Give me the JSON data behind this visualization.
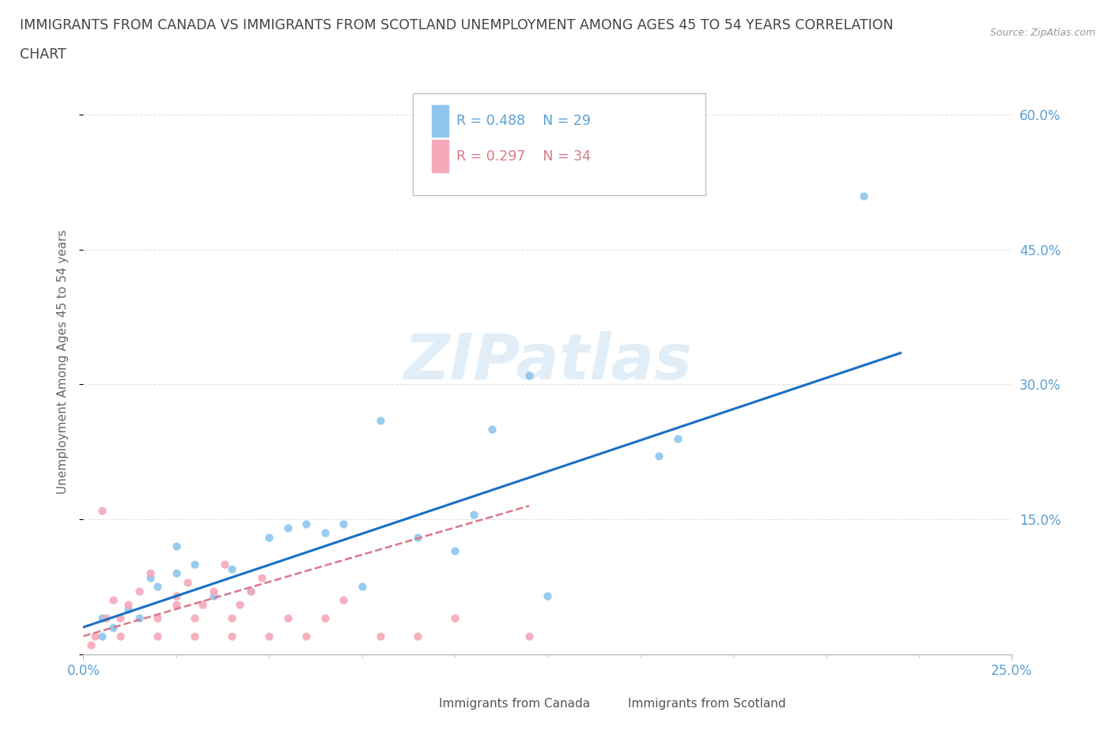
{
  "title_line1": "IMMIGRANTS FROM CANADA VS IMMIGRANTS FROM SCOTLAND UNEMPLOYMENT AMONG AGES 45 TO 54 YEARS CORRELATION",
  "title_line2": "CHART",
  "source_text": "Source: ZipAtlas.com",
  "ylabel": "Unemployment Among Ages 45 to 54 years",
  "xlim": [
    0.0,
    0.25
  ],
  "ylim": [
    0.0,
    0.65
  ],
  "yticks": [
    0.0,
    0.15,
    0.3,
    0.45,
    0.6
  ],
  "ytick_labels": [
    "",
    "15.0%",
    "30.0%",
    "45.0%",
    "60.0%"
  ],
  "xtick_main": [
    0.0,
    0.25
  ],
  "xtick_main_labels": [
    "0.0%",
    "25.0%"
  ],
  "xtick_minor_positions": [
    0.025,
    0.05,
    0.075,
    0.1,
    0.125,
    0.15,
    0.175,
    0.2,
    0.225
  ],
  "watermark": "ZIPatlas",
  "legend_r1": "R = 0.488",
  "legend_n1": "N = 29",
  "legend_r2": "R = 0.297",
  "legend_n2": "N = 34",
  "color_canada": "#8ec6ee",
  "color_scotland": "#f5a8ba",
  "color_line_canada": "#1a6fc4",
  "color_line_scotland": "#d9788a",
  "background_color": "#ffffff",
  "title_color": "#444444",
  "axis_label_color": "#5a9fd4",
  "grid_color": "#e0e0e0",
  "title_fontsize": 12.5,
  "label_fontsize": 11,
  "tick_fontsize": 12,
  "canada_x": [
    0.005,
    0.005,
    0.008,
    0.012,
    0.015,
    0.018,
    0.02,
    0.025,
    0.025,
    0.03,
    0.035,
    0.04,
    0.045,
    0.05,
    0.055,
    0.06,
    0.065,
    0.07,
    0.075,
    0.08,
    0.09,
    0.1,
    0.105,
    0.11,
    0.12,
    0.125,
    0.155,
    0.16,
    0.21
  ],
  "canada_y": [
    0.02,
    0.04,
    0.03,
    0.05,
    0.04,
    0.085,
    0.075,
    0.09,
    0.12,
    0.1,
    0.065,
    0.095,
    0.07,
    0.13,
    0.14,
    0.145,
    0.135,
    0.145,
    0.075,
    0.26,
    0.13,
    0.115,
    0.155,
    0.25,
    0.31,
    0.065,
    0.22,
    0.24,
    0.51
  ],
  "scotland_x": [
    0.002,
    0.003,
    0.005,
    0.006,
    0.008,
    0.01,
    0.01,
    0.012,
    0.015,
    0.018,
    0.02,
    0.02,
    0.025,
    0.025,
    0.028,
    0.03,
    0.03,
    0.032,
    0.035,
    0.038,
    0.04,
    0.04,
    0.042,
    0.045,
    0.048,
    0.05,
    0.055,
    0.06,
    0.065,
    0.07,
    0.08,
    0.09,
    0.1,
    0.12
  ],
  "scotland_y": [
    0.01,
    0.02,
    0.16,
    0.04,
    0.06,
    0.02,
    0.04,
    0.055,
    0.07,
    0.09,
    0.02,
    0.04,
    0.055,
    0.065,
    0.08,
    0.02,
    0.04,
    0.055,
    0.07,
    0.1,
    0.02,
    0.04,
    0.055,
    0.07,
    0.085,
    0.02,
    0.04,
    0.02,
    0.04,
    0.06,
    0.02,
    0.02,
    0.04,
    0.02
  ],
  "canada_trendline_x0": 0.0,
  "canada_trendline_x1": 0.22,
  "canada_trendline_y0": 0.03,
  "canada_trendline_y1": 0.335,
  "scotland_trendline_x0": 0.0,
  "scotland_trendline_x1": 0.12,
  "scotland_trendline_y0": 0.02,
  "scotland_trendline_y1": 0.165
}
